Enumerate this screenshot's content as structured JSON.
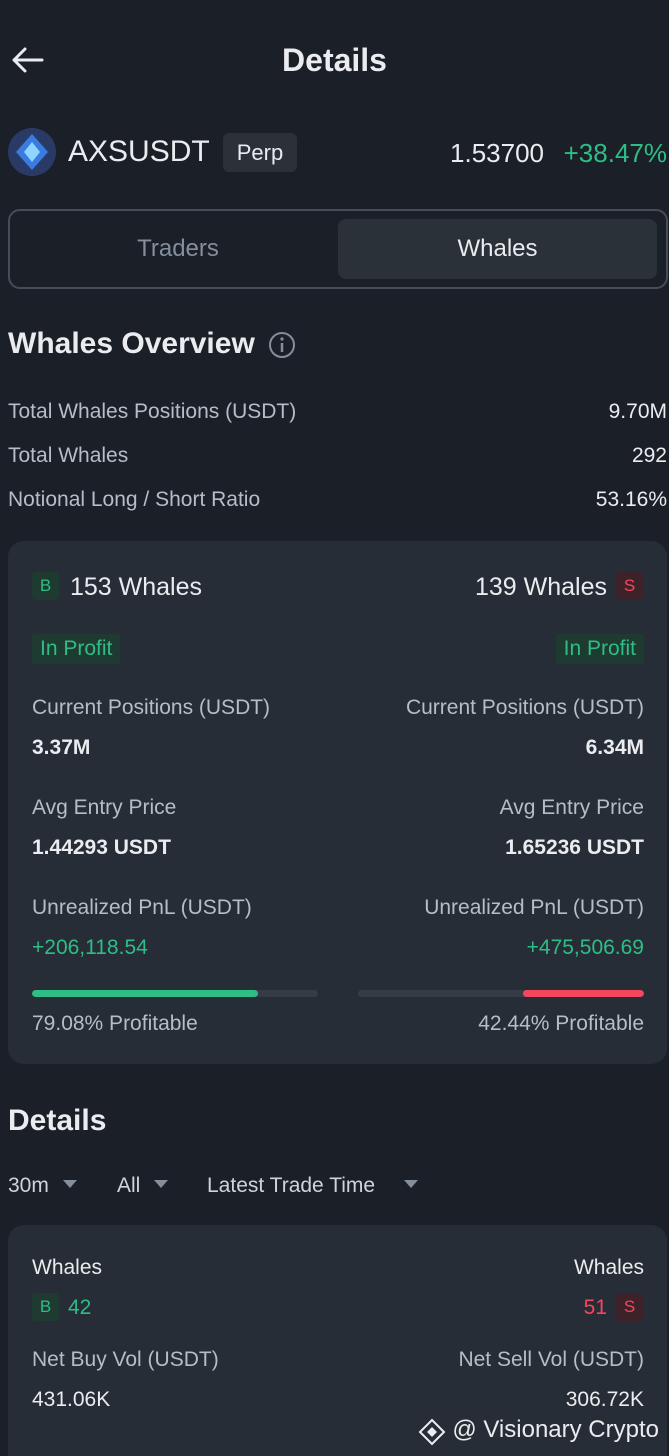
{
  "header": {
    "title": "Details"
  },
  "symbol": {
    "name": "AXSUSDT",
    "badge": "Perp",
    "price": "1.53700",
    "change": "+38.47%"
  },
  "tabs": [
    "Traders",
    "Whales"
  ],
  "overview": {
    "title": "Whales Overview",
    "rows": [
      [
        "Total Whales Positions (USDT)",
        "9.70M"
      ],
      [
        "Total Whales",
        "292"
      ],
      [
        "Notional Long / Short Ratio",
        "53.16%"
      ]
    ]
  },
  "long": {
    "badge": "B",
    "count": "153 Whales",
    "status": "In Profit",
    "positions_label": "Current Positions (USDT)",
    "positions": "3.37M",
    "entry_label": "Avg Entry Price",
    "entry": "1.44293 USDT",
    "pnl_label": "Unrealized PnL (USDT)",
    "pnl": "+206,118.54",
    "profitable": {
      "value": 79.08,
      "label": "79.08% Profitable"
    }
  },
  "short": {
    "badge": "S",
    "count": "139 Whales",
    "status": "In Profit",
    "positions_label": "Current Positions (USDT)",
    "positions": "6.34M",
    "entry_label": "Avg Entry Price",
    "entry": "1.65236 USDT",
    "pnl_label": "Unrealized PnL (USDT)",
    "pnl": "+475,506.69",
    "profitable": {
      "value": 42.44,
      "label": "42.44% Profitable"
    }
  },
  "details": {
    "title": "Details",
    "filters": [
      "30m",
      "All",
      "Latest Trade Time"
    ],
    "buy": {
      "label": "Whales",
      "badge": "B",
      "count": "42",
      "vol_label": "Net Buy Vol (USDT)",
      "vol": "431.06K"
    },
    "sell": {
      "label": "Whales",
      "badge": "S",
      "count": "51",
      "vol_label": "Net Sell Vol (USDT)",
      "vol": "306.72K"
    }
  },
  "watermark": "@ Visionary Crypto"
}
